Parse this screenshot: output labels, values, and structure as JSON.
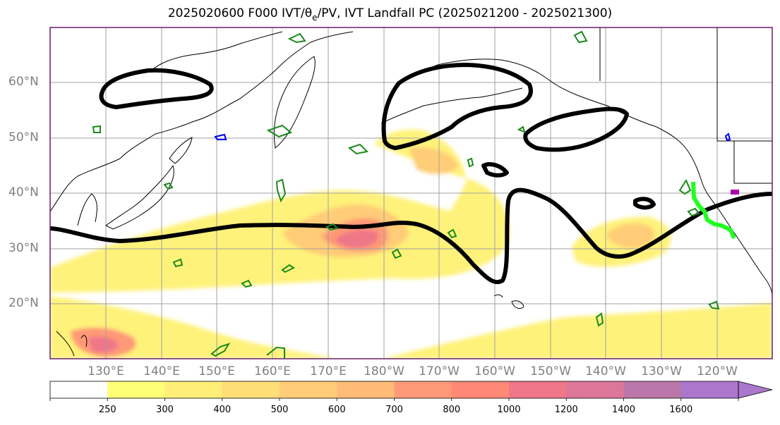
{
  "figure": {
    "title_prefix": "2025020600 F000 IVT/θ",
    "title_subscript": "e",
    "title_suffix": "/PV, IVT Landfall PC (2025021200 - 2025021300)"
  },
  "map": {
    "lat_labels": [
      "60°N",
      "50°N",
      "40°N",
      "30°N",
      "20°N"
    ],
    "lon_labels": [
      "130°E",
      "140°E",
      "150°E",
      "160°E",
      "170°E",
      "180°W",
      "170°W",
      "160°W",
      "150°W",
      "140°W",
      "130°W",
      "120°W"
    ],
    "lat_range": [
      10,
      70
    ],
    "lon_range": [
      120,
      250
    ],
    "graticule_step_deg": 10,
    "colors": {
      "frame": "#6b1d6b",
      "grid": "#a0a0a0",
      "coastline": "#000000",
      "contour_black": "#000000",
      "contour_green": "#1a8a1a",
      "landfall_track": "#22ff22"
    }
  },
  "colorbar": {
    "levels": [
      "250",
      "300",
      "400",
      "500",
      "600",
      "700",
      "800",
      "1000",
      "1200",
      "1400",
      "1600"
    ],
    "colors": [
      "#ffffff",
      "#ffff77",
      "#ffee77",
      "#ffdd77",
      "#ffcc77",
      "#ffbb77",
      "#ff9977",
      "#ff8877",
      "#ee7788",
      "#dd7799",
      "#bb77aa",
      "#aa77cc"
    ],
    "extend": "max"
  }
}
